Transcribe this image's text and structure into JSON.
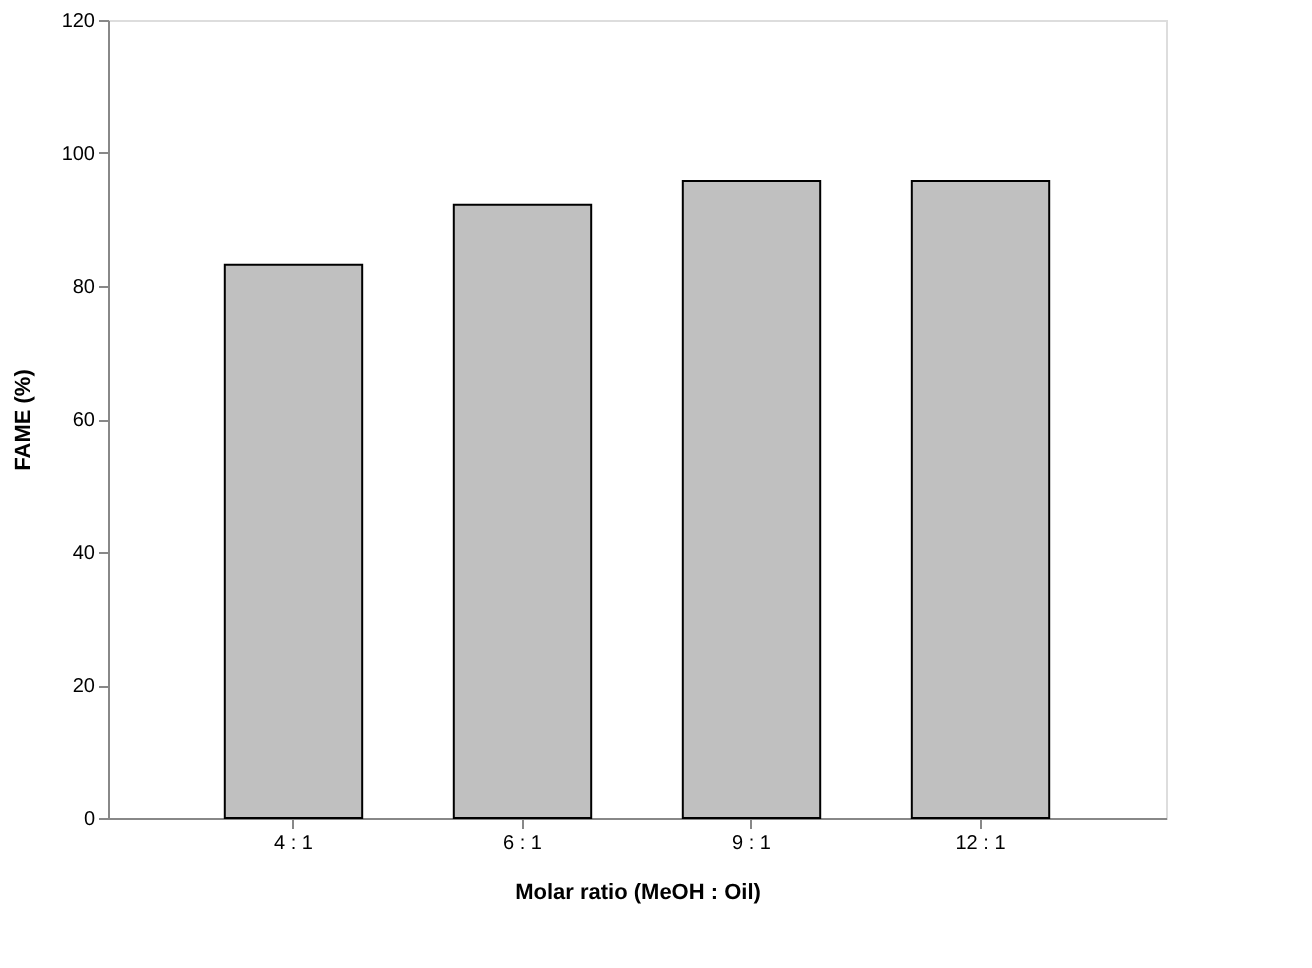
{
  "chart_data": {
    "type": "bar",
    "xlabel": "Molar ratio (MeOH : Oil)",
    "ylabel": "FAME (%)",
    "categories": [
      "4 : 1",
      "6 : 1",
      "9 : 1",
      "12 : 1"
    ],
    "values": [
      83.2,
      92.2,
      95.8,
      95.8
    ],
    "color": "#c0c0c0",
    "ylim": [
      0,
      120
    ],
    "yticks": [
      0,
      20,
      40,
      60,
      80,
      100,
      120
    ],
    "grid": false
  }
}
